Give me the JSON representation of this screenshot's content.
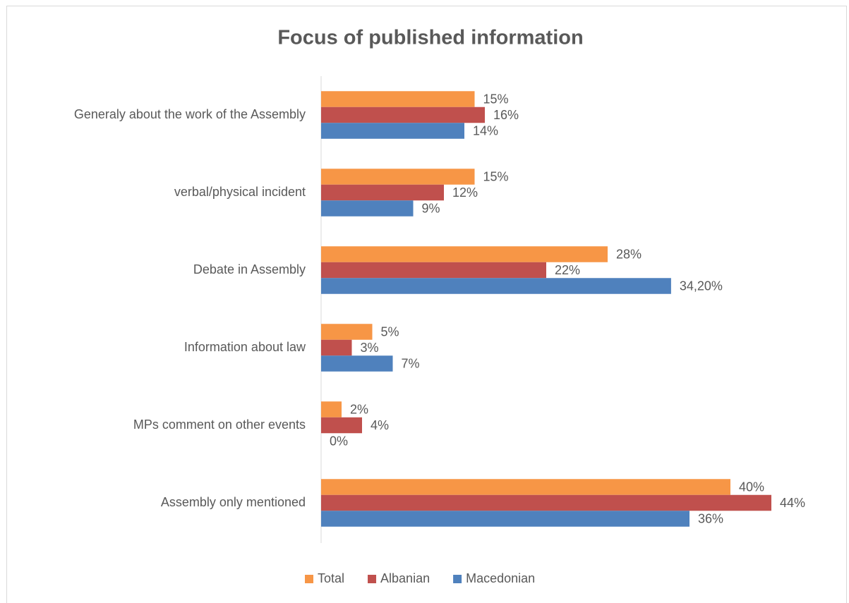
{
  "chart_data": {
    "type": "barh",
    "title": "Focus of published information",
    "categories": [
      "Generaly about the work of the Assembly",
      "verbal/physical incident",
      "Debate in Assembly",
      "Information about law",
      "MPs comment on other events",
      "Assembly only mentioned"
    ],
    "series": [
      {
        "name": "Total",
        "color": "#f79646",
        "values": [
          15,
          15,
          28,
          5,
          2,
          40
        ],
        "value_labels": [
          "15%",
          "15%",
          "28%",
          "5%",
          "2%",
          "40%"
        ]
      },
      {
        "name": "Albanian",
        "color": "#c0504d",
        "values": [
          16,
          12,
          22,
          3,
          4,
          44
        ],
        "value_labels": [
          "16%",
          "12%",
          "22%",
          "3%",
          "4%",
          "44%"
        ]
      },
      {
        "name": "Macedonian",
        "color": "#4f81bd",
        "values": [
          14,
          9,
          34.2,
          7,
          0,
          36
        ],
        "value_labels": [
          "14%",
          "9%",
          "34,20%",
          "7%",
          "0%",
          "36%"
        ]
      }
    ],
    "legend": "bottom"
  }
}
